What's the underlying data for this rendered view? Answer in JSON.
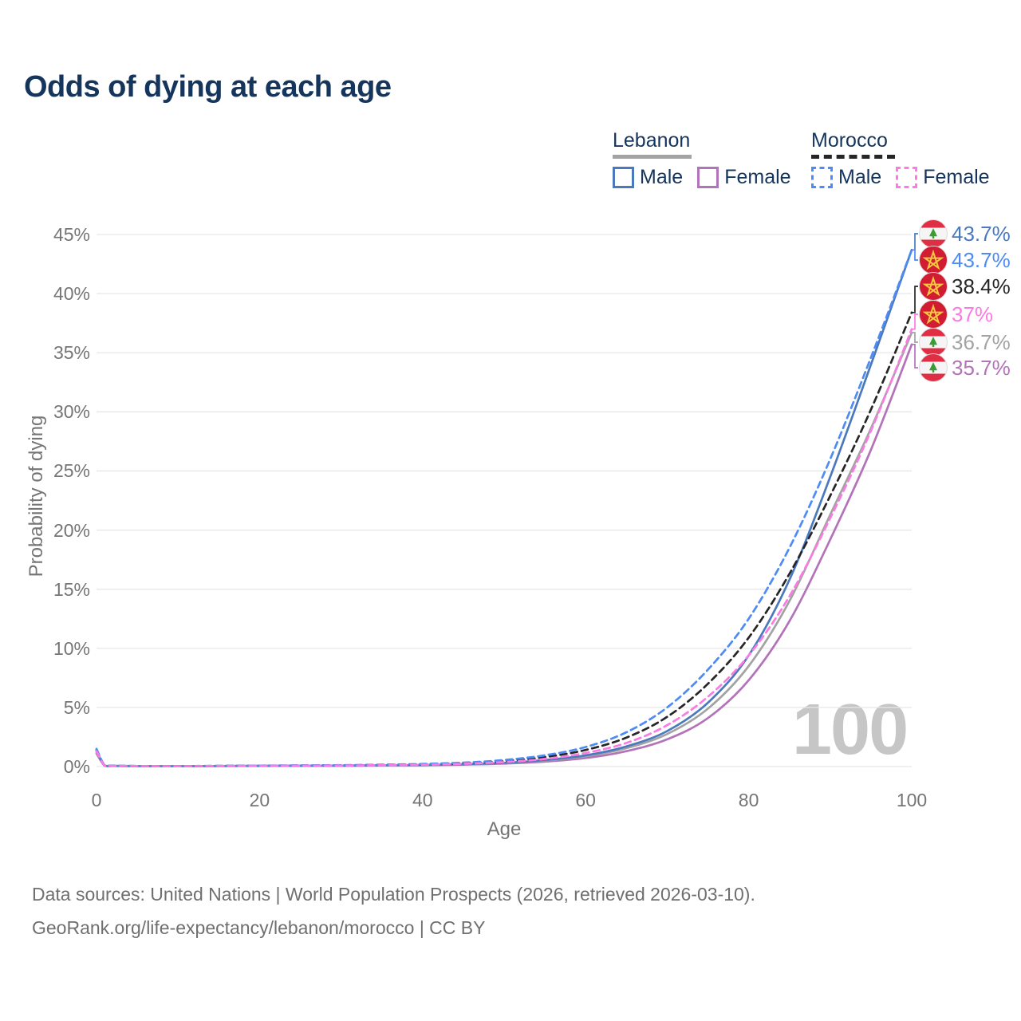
{
  "title": "Odds of dying at each age",
  "watermark": "100",
  "colors": {
    "title_text": "#16355c",
    "axis_text": "#757575",
    "gridline": "#e7e7e7",
    "watermark": "#c6c6c6",
    "footer_text": "#6f6f6f"
  },
  "legend": {
    "groups": [
      {
        "title": "Lebanon",
        "line_style": "solid",
        "underline_series_id": "lebanon-both",
        "items": [
          {
            "label": "Male",
            "series_id": "lebanon-male"
          },
          {
            "label": "Female",
            "series_id": "lebanon-female"
          }
        ]
      },
      {
        "title": "Morocco",
        "line_style": "dashed",
        "underline_series_id": "morocco-both",
        "items": [
          {
            "label": "Male",
            "series_id": "morocco-male"
          },
          {
            "label": "Female",
            "series_id": "morocco-female"
          }
        ]
      }
    ]
  },
  "footer": {
    "line1": "Data sources: United Nations | World Population Prospects (2026, retrieved 2026-03-10).",
    "line2": "GeoRank.org/life-expectancy/lebanon/morocco | CC BY"
  },
  "chart_data": {
    "type": "line",
    "title": "Odds of dying at each age",
    "xlabel": "Age",
    "ylabel": "Probability of dying",
    "xlim": [
      0,
      100
    ],
    "ylim": [
      0,
      45
    ],
    "x_ticks": [
      0,
      20,
      40,
      60,
      80,
      100
    ],
    "y_ticks": [
      0,
      5,
      10,
      15,
      20,
      25,
      30,
      35,
      40,
      45
    ],
    "y_tick_suffix": "%",
    "grid": "horizontal",
    "legend_position": "top-right",
    "ages": [
      0,
      1,
      2,
      5,
      10,
      15,
      20,
      25,
      30,
      35,
      40,
      45,
      50,
      55,
      60,
      65,
      70,
      75,
      80,
      85,
      90,
      95,
      100
    ],
    "series": [
      {
        "id": "lebanon-male",
        "country": "Lebanon",
        "sex": "Male",
        "color": "#4a79bd",
        "dash": false,
        "end_value": 43.7,
        "values": [
          1.3,
          0.09,
          0.06,
          0.04,
          0.03,
          0.05,
          0.06,
          0.07,
          0.08,
          0.1,
          0.13,
          0.2,
          0.32,
          0.55,
          0.95,
          1.7,
          3.0,
          5.4,
          9.4,
          15.8,
          24.5,
          34.0,
          43.7
        ]
      },
      {
        "id": "lebanon-female",
        "country": "Lebanon",
        "sex": "Female",
        "color": "#b273b9",
        "dash": false,
        "end_value": 35.7,
        "values": [
          1.1,
          0.07,
          0.045,
          0.03,
          0.025,
          0.04,
          0.05,
          0.06,
          0.07,
          0.09,
          0.11,
          0.16,
          0.25,
          0.42,
          0.72,
          1.3,
          2.3,
          4.1,
          7.3,
          12.3,
          19.2,
          26.8,
          35.7
        ]
      },
      {
        "id": "lebanon-both",
        "country": "Lebanon",
        "sex": "Both sexes",
        "color": "#a3a3a3",
        "dash": false,
        "end_value": 36.7,
        "values": [
          1.2,
          0.08,
          0.05,
          0.035,
          0.028,
          0.045,
          0.055,
          0.065,
          0.078,
          0.1,
          0.13,
          0.19,
          0.3,
          0.51,
          0.87,
          1.55,
          2.75,
          4.9,
          8.5,
          14.0,
          21.3,
          28.6,
          36.7
        ]
      },
      {
        "id": "morocco-male",
        "country": "Morocco",
        "sex": "Male",
        "color": "#4d8bf5",
        "dash": true,
        "end_value": 43.7,
        "values": [
          1.5,
          0.1,
          0.07,
          0.05,
          0.04,
          0.06,
          0.08,
          0.1,
          0.12,
          0.16,
          0.22,
          0.33,
          0.55,
          0.95,
          1.65,
          2.9,
          5.0,
          8.2,
          12.5,
          18.5,
          26.0,
          34.6,
          43.7
        ]
      },
      {
        "id": "morocco-female",
        "country": "Morocco",
        "sex": "Female",
        "color": "#fb7ae3",
        "dash": true,
        "end_value": 37.0,
        "values": [
          1.3,
          0.08,
          0.055,
          0.04,
          0.03,
          0.05,
          0.06,
          0.075,
          0.09,
          0.115,
          0.155,
          0.23,
          0.38,
          0.65,
          1.15,
          2.0,
          3.5,
          5.9,
          9.4,
          14.4,
          21.0,
          28.4,
          37.0
        ]
      },
      {
        "id": "morocco-both",
        "country": "Morocco",
        "sex": "Both sexes",
        "color": "#262626",
        "dash": true,
        "end_value": 38.4,
        "values": [
          1.4,
          0.09,
          0.06,
          0.045,
          0.035,
          0.055,
          0.07,
          0.085,
          0.1,
          0.135,
          0.185,
          0.28,
          0.46,
          0.8,
          1.4,
          2.45,
          4.2,
          7.0,
          10.9,
          16.3,
          22.9,
          30.2,
          38.4
        ]
      }
    ],
    "end_labels": [
      {
        "text": "43.7%",
        "flag": "lebanon",
        "series_id": "lebanon-male"
      },
      {
        "text": "43.7%",
        "flag": "morocco",
        "series_id": "morocco-male"
      },
      {
        "text": "38.4%",
        "flag": "morocco",
        "series_id": "morocco-both"
      },
      {
        "text": "37%",
        "flag": "morocco",
        "series_id": "morocco-female"
      },
      {
        "text": "36.7%",
        "flag": "lebanon",
        "series_id": "lebanon-both"
      },
      {
        "text": "35.7%",
        "flag": "lebanon",
        "series_id": "lebanon-female"
      }
    ]
  }
}
